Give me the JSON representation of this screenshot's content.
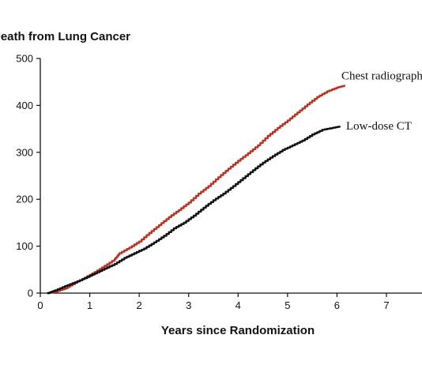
{
  "chart_data": {
    "type": "line",
    "ylabel": "Death from Lung Cancer",
    "xlabel": "Years since Randomization",
    "xlim": [
      0,
      7
    ],
    "ylim": [
      0,
      500
    ],
    "xticks": [
      0,
      1,
      2,
      3,
      4,
      5,
      6,
      7
    ],
    "yticks": [
      0,
      100,
      200,
      300,
      400,
      500
    ],
    "grid": false,
    "series": [
      {
        "name": "Chest radiography",
        "color": "#b83224",
        "x": [
          0.15,
          0.3,
          0.5,
          0.7,
          0.9,
          1.1,
          1.3,
          1.5,
          1.6,
          1.8,
          2.0,
          2.2,
          2.4,
          2.6,
          2.8,
          3.0,
          3.2,
          3.4,
          3.6,
          3.8,
          4.0,
          4.2,
          4.4,
          4.6,
          4.8,
          5.0,
          5.2,
          5.4,
          5.6,
          5.8,
          6.0,
          6.15
        ],
        "values": [
          0,
          3,
          10,
          22,
          33,
          45,
          58,
          72,
          85,
          97,
          110,
          128,
          145,
          162,
          177,
          193,
          212,
          228,
          247,
          265,
          282,
          298,
          315,
          335,
          352,
          368,
          385,
          402,
          418,
          430,
          438,
          442
        ]
      },
      {
        "name": "Low-dose CT",
        "color": "#111111",
        "x": [
          0.15,
          0.3,
          0.5,
          0.7,
          0.9,
          1.1,
          1.3,
          1.5,
          1.7,
          1.9,
          2.1,
          2.3,
          2.5,
          2.7,
          2.9,
          3.1,
          3.3,
          3.5,
          3.7,
          3.9,
          4.1,
          4.3,
          4.5,
          4.7,
          4.9,
          5.1,
          5.3,
          5.5,
          5.7,
          5.9,
          6.05
        ],
        "values": [
          0,
          6,
          15,
          23,
          32,
          42,
          52,
          62,
          75,
          85,
          95,
          108,
          122,
          138,
          150,
          165,
          182,
          198,
          212,
          228,
          245,
          262,
          278,
          292,
          305,
          315,
          325,
          338,
          348,
          352,
          355
        ]
      }
    ]
  }
}
